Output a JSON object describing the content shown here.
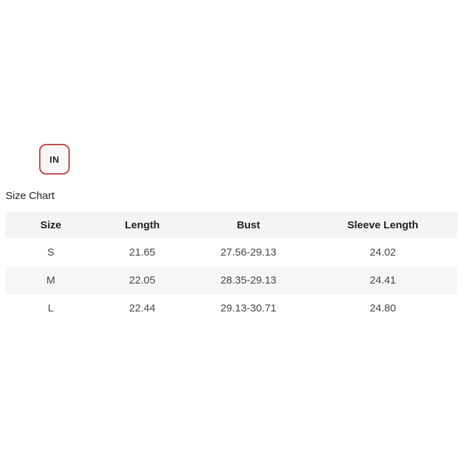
{
  "unit_toggle": {
    "label": "IN"
  },
  "section_title": "Size Chart",
  "table": {
    "columns": [
      "Size",
      "Length",
      "Bust",
      "Sleeve Length"
    ],
    "rows": [
      {
        "size": "S",
        "length": "21.65",
        "bust": "27.56-29.13",
        "sleeve_length": "24.02"
      },
      {
        "size": "M",
        "length": "22.05",
        "bust": "28.35-29.13",
        "sleeve_length": "24.41"
      },
      {
        "size": "L",
        "length": "22.44",
        "bust": "29.13-30.71",
        "sleeve_length": "24.80"
      }
    ]
  },
  "colors": {
    "accent": "#c0494c",
    "header_bg": "#f4f4f4",
    "stripe_bg": "#f7f6f6",
    "text_dark": "#222222",
    "text_body": "#454545",
    "button_bg": "#f9f7f7"
  }
}
